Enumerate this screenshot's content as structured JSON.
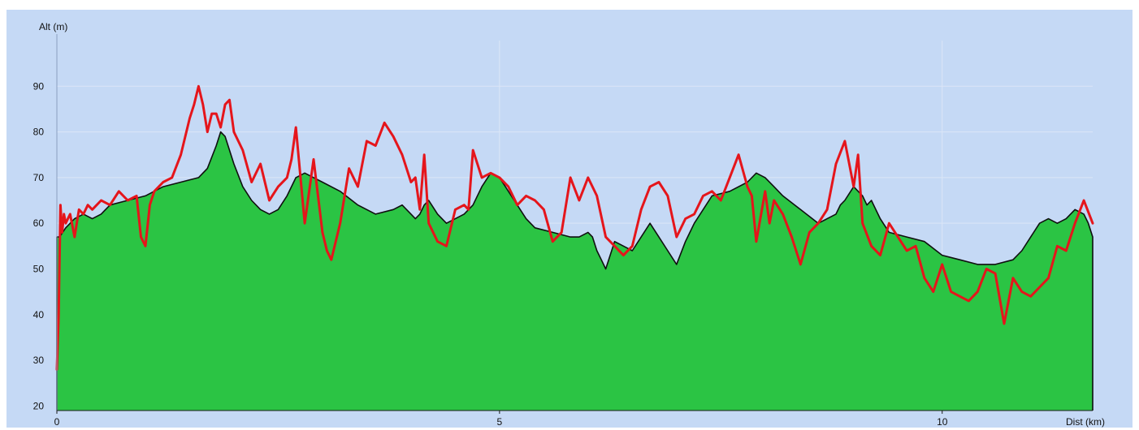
{
  "chart_data": {
    "type": "area",
    "title": "",
    "xlabel": "Dist (km)",
    "ylabel": "Alt (m)",
    "xlim": [
      0,
      11.7
    ],
    "ylim": [
      19,
      100
    ],
    "x_ticks": [
      0,
      5,
      10
    ],
    "y_ticks": [
      20,
      30,
      40,
      50,
      60,
      70,
      80,
      90
    ],
    "grid": true,
    "legend": "none",
    "colors": {
      "background": "#c5d9f5",
      "area_fill": "#2bc444",
      "area_outline": "#0f0f0f",
      "line": "#e5151b",
      "grid": "#dbe6f7"
    },
    "series": [
      {
        "style": "area",
        "x": [
          0,
          0.03,
          0.1,
          0.2,
          0.3,
          0.4,
          0.5,
          0.6,
          0.8,
          1.0,
          1.2,
          1.4,
          1.6,
          1.7,
          1.8,
          1.85,
          1.9,
          1.95,
          2.0,
          2.1,
          2.2,
          2.3,
          2.4,
          2.5,
          2.6,
          2.7,
          2.8,
          2.9,
          3.0,
          3.2,
          3.4,
          3.6,
          3.8,
          3.9,
          4.0,
          4.05,
          4.1,
          4.15,
          4.2,
          4.3,
          4.4,
          4.5,
          4.6,
          4.7,
          4.8,
          4.9,
          5.0,
          5.1,
          5.2,
          5.3,
          5.4,
          5.6,
          5.8,
          5.9,
          6.0,
          6.05,
          6.1,
          6.15,
          6.2,
          6.3,
          6.4,
          6.5,
          6.6,
          6.7,
          6.8,
          6.9,
          7.0,
          7.1,
          7.15,
          7.2,
          7.3,
          7.4,
          7.6,
          7.8,
          7.9,
          8.0,
          8.1,
          8.2,
          8.4,
          8.6,
          8.7,
          8.8,
          8.85,
          8.9,
          9.0,
          9.1,
          9.15,
          9.2,
          9.3,
          9.4,
          9.6,
          9.8,
          10.0,
          10.2,
          10.4,
          10.6,
          10.8,
          10.9,
          11.0,
          11.1,
          11.2,
          11.3,
          11.4,
          11.5,
          11.6,
          11.65,
          11.7
        ],
        "values": [
          57,
          57,
          59,
          61,
          62,
          61,
          62,
          64,
          65,
          66,
          68,
          69,
          70,
          72,
          77,
          80,
          79,
          76,
          73,
          68,
          65,
          63,
          62,
          63,
          66,
          70,
          71,
          70,
          69,
          67,
          64,
          62,
          63,
          64,
          62,
          61,
          62,
          64,
          65,
          62,
          60,
          61,
          62,
          64,
          68,
          71,
          70,
          67,
          64,
          61,
          59,
          58,
          57,
          57,
          58,
          57,
          54,
          52,
          50,
          56,
          55,
          54,
          57,
          60,
          57,
          54,
          51,
          56,
          58,
          60,
          63,
          66,
          67,
          69,
          71,
          70,
          68,
          66,
          63,
          60,
          61,
          62,
          64,
          65,
          68,
          66,
          64,
          65,
          61,
          58,
          57,
          56,
          53,
          52,
          51,
          51,
          52,
          54,
          57,
          60,
          61,
          60,
          61,
          63,
          62,
          60,
          57
        ]
      },
      {
        "style": "line",
        "x": [
          0,
          0.02,
          0.04,
          0.06,
          0.08,
          0.1,
          0.15,
          0.2,
          0.25,
          0.3,
          0.35,
          0.4,
          0.5,
          0.6,
          0.7,
          0.8,
          0.9,
          0.95,
          1.0,
          1.05,
          1.1,
          1.2,
          1.3,
          1.4,
          1.5,
          1.55,
          1.6,
          1.65,
          1.7,
          1.75,
          1.8,
          1.85,
          1.9,
          1.95,
          2.0,
          2.1,
          2.2,
          2.3,
          2.4,
          2.5,
          2.6,
          2.65,
          2.7,
          2.8,
          2.9,
          3.0,
          3.05,
          3.1,
          3.2,
          3.3,
          3.4,
          3.5,
          3.6,
          3.7,
          3.8,
          3.9,
          4.0,
          4.05,
          4.1,
          4.15,
          4.2,
          4.3,
          4.4,
          4.5,
          4.6,
          4.65,
          4.7,
          4.8,
          4.9,
          5.0,
          5.1,
          5.2,
          5.3,
          5.4,
          5.5,
          5.6,
          5.7,
          5.8,
          5.9,
          6.0,
          6.1,
          6.2,
          6.3,
          6.4,
          6.5,
          6.6,
          6.7,
          6.8,
          6.9,
          7.0,
          7.1,
          7.2,
          7.3,
          7.4,
          7.5,
          7.6,
          7.7,
          7.8,
          7.85,
          7.9,
          8.0,
          8.05,
          8.1,
          8.2,
          8.3,
          8.4,
          8.5,
          8.6,
          8.7,
          8.8,
          8.9,
          9.0,
          9.05,
          9.1,
          9.2,
          9.3,
          9.4,
          9.5,
          9.6,
          9.7,
          9.8,
          9.9,
          10.0,
          10.1,
          10.2,
          10.3,
          10.4,
          10.5,
          10.6,
          10.7,
          10.8,
          10.9,
          11.0,
          11.1,
          11.2,
          11.3,
          11.4,
          11.5,
          11.6,
          11.7
        ],
        "values": [
          28,
          40,
          64,
          58,
          62,
          60,
          62,
          57,
          63,
          62,
          64,
          63,
          65,
          64,
          67,
          65,
          66,
          57,
          55,
          64,
          67,
          69,
          70,
          75,
          83,
          86,
          90,
          86,
          80,
          84,
          84,
          81,
          86,
          87,
          80,
          76,
          69,
          73,
          65,
          68,
          70,
          74,
          81,
          60,
          74,
          58,
          54,
          52,
          60,
          72,
          68,
          78,
          77,
          82,
          79,
          75,
          69,
          70,
          63,
          75,
          60,
          56,
          55,
          63,
          64,
          63,
          76,
          70,
          71,
          70,
          68,
          64,
          66,
          65,
          63,
          56,
          58,
          70,
          65,
          70,
          66,
          57,
          55,
          53,
          55,
          63,
          68,
          69,
          66,
          57,
          61,
          62,
          66,
          67,
          65,
          70,
          75,
          68,
          66,
          56,
          67,
          60,
          65,
          62,
          57,
          51,
          58,
          60,
          63,
          73,
          78,
          68,
          75,
          60,
          55,
          53,
          60,
          57,
          54,
          55,
          48,
          45,
          51,
          45,
          44,
          43,
          45,
          50,
          49,
          38,
          48,
          45,
          44,
          46,
          48,
          55,
          54,
          60,
          65,
          60
        ]
      }
    ]
  }
}
